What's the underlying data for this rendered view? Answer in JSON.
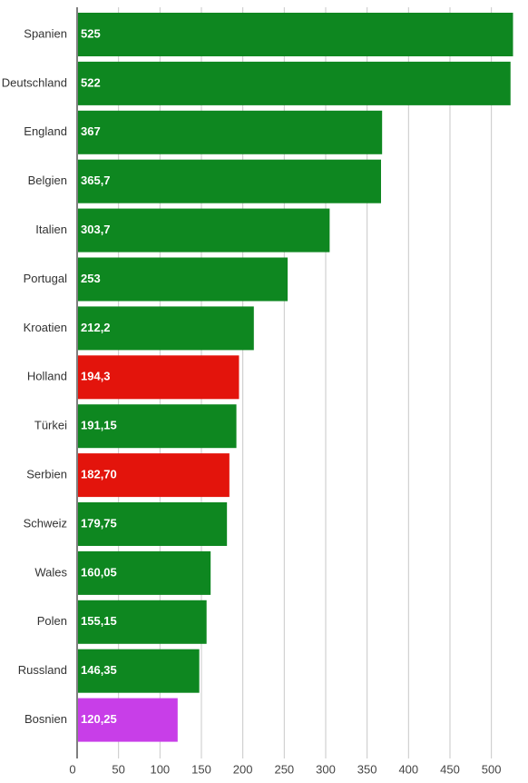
{
  "chart_data": {
    "type": "bar",
    "orientation": "horizontal",
    "categories": [
      "Spanien",
      "Deutschland",
      "England",
      "Belgien",
      "Italien",
      "Portugal",
      "Kroatien",
      "Holland",
      "Türkei",
      "Serbien",
      "Schweiz",
      "Wales",
      "Polen",
      "Russland",
      "Bosnien"
    ],
    "values": [
      525,
      522,
      367,
      365.7,
      303.7,
      253,
      212.2,
      194.3,
      191.15,
      182.7,
      179.75,
      160.05,
      155.15,
      146.35,
      120.25
    ],
    "value_labels": [
      "525",
      "522",
      "367",
      "365,7",
      "303,7",
      "253",
      "212,2",
      "194,3",
      "191,15",
      "182,70",
      "179,75",
      "160,05",
      "155,15",
      "146,35",
      "120,25"
    ],
    "bar_colors": [
      "#0e8720",
      "#0e8720",
      "#0e8720",
      "#0e8720",
      "#0e8720",
      "#0e8720",
      "#0e8720",
      "#e3140c",
      "#0e8720",
      "#e3140c",
      "#0e8720",
      "#0e8720",
      "#0e8720",
      "#0e8720",
      "#c83ee8"
    ],
    "xticks": [
      "0",
      "50",
      "100",
      "150",
      "200",
      "250",
      "300",
      "350",
      "400",
      "450",
      "500"
    ],
    "xlim": [
      0,
      530
    ],
    "grid": true,
    "title": "",
    "xlabel": "",
    "ylabel": ""
  }
}
